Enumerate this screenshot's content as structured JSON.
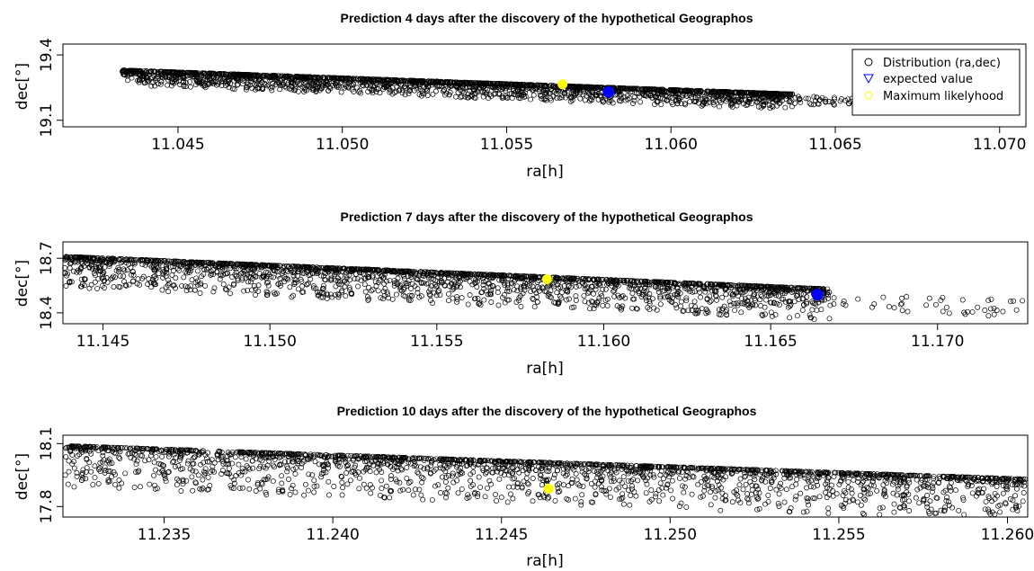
{
  "figure": {
    "colors": {
      "points": "#000000",
      "expected": "#0000ff",
      "max_likelihood": "#ffff00",
      "frame": "#000000"
    },
    "legend": {
      "entries": [
        {
          "label": "Distribution (ra,dec)",
          "symbol": "circle-open",
          "color": "#000000"
        },
        {
          "label": "expected value",
          "symbol": "triangle-down-open",
          "color": "#0000ff"
        },
        {
          "label": "Maximum likelyhood",
          "symbol": "circle-open",
          "color": "#ffff00"
        }
      ]
    }
  },
  "chart_data": [
    {
      "type": "scatter",
      "title": "Prediction 4 days after the discovery of the hypothetical Geographos",
      "xlabel": "ra[h]",
      "ylabel": "dec[°]",
      "xlim": [
        11.0415,
        11.0708
      ],
      "ylim": [
        19.07,
        19.45
      ],
      "xticks": [
        "11.045",
        "11.050",
        "11.055",
        "11.060",
        "11.065",
        "11.070"
      ],
      "yticks": [
        "19.1",
        "19.4"
      ],
      "legend_position": "top-right",
      "distribution": {
        "x_range": [
          11.0433,
          11.0637
        ],
        "y_top": [
          19.33,
          19.22
        ],
        "spread": 0.07,
        "sparse_tail_x": [
          11.0637,
          11.066
        ]
      },
      "expected_value": {
        "x": 11.0581,
        "y": 19.23
      },
      "max_likelihood": {
        "x": 11.0567,
        "y": 19.265
      }
    },
    {
      "type": "scatter",
      "title": "Prediction 7 days after the discovery of the hypothetical Geographos",
      "xlabel": "ra[h]",
      "ylabel": "dec[°]",
      "xlim": [
        11.1438,
        11.1727
      ],
      "ylim": [
        18.34,
        18.79
      ],
      "xticks": [
        "11.145",
        "11.150",
        "11.155",
        "11.160",
        "11.165",
        "11.170"
      ],
      "yticks": [
        "18.4",
        "18.7"
      ],
      "distribution": {
        "x_range": [
          11.1438,
          11.1668
        ],
        "y_top": [
          18.71,
          18.53
        ],
        "spread": 0.17,
        "sparse_tail_x": [
          11.1668,
          11.1727
        ]
      },
      "expected_value": {
        "x": 11.1664,
        "y": 18.5
      },
      "max_likelihood": {
        "x": 11.1583,
        "y": 18.585
      }
    },
    {
      "type": "scatter",
      "title": "Prediction 10 days after the discovery of the hypothetical Geographos",
      "xlabel": "ra[h]",
      "ylabel": "dec[°]",
      "xlim": [
        11.232,
        11.2606
      ],
      "ylim": [
        17.75,
        18.14
      ],
      "xticks": [
        "11.235",
        "11.240",
        "11.245",
        "11.250",
        "11.255",
        "11.260"
      ],
      "yticks": [
        "17.8",
        "18.1"
      ],
      "distribution": {
        "x_range": [
          11.232,
          11.2606
        ],
        "y_top": [
          18.09,
          17.93
        ],
        "spread": 0.2,
        "sparse_tail_x": []
      },
      "max_likelihood": {
        "x": 11.2464,
        "y": 17.885
      }
    }
  ]
}
